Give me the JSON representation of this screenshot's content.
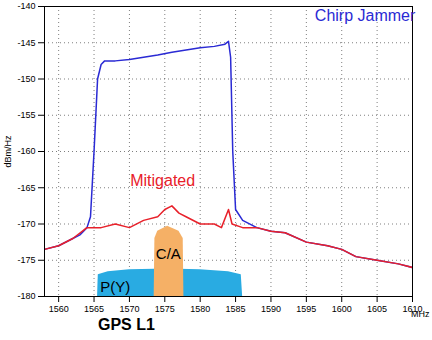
{
  "chart_data": {
    "type": "line",
    "caption": "GPS L1",
    "x_label": "MHz",
    "y_label": "dBm/Hz",
    "xlim": [
      1558,
      1610
    ],
    "xticks": [
      1560,
      1565,
      1570,
      1575,
      1580,
      1585,
      1590,
      1595,
      1600,
      1605,
      1610
    ],
    "ylim": [
      -180,
      -140
    ],
    "yticks": [
      -180,
      -175,
      -170,
      -165,
      -160,
      -155,
      -150,
      -145,
      -140
    ],
    "grid": true,
    "series": [
      {
        "name": "Chirp Jammer",
        "type": "line",
        "color": "#2a2ad4",
        "x": [
          1558,
          1560,
          1562,
          1563,
          1564,
          1564.5,
          1565,
          1565.5,
          1566,
          1566.5,
          1568,
          1570,
          1572,
          1574,
          1576,
          1578,
          1580,
          1582,
          1583.5,
          1584,
          1584.3,
          1584.6,
          1585,
          1586,
          1588,
          1590,
          1592,
          1595,
          1598,
          1600,
          1602,
          1605,
          1608,
          1610
        ],
        "values": [
          -173.5,
          -173,
          -172,
          -171.5,
          -170.5,
          -169,
          -160,
          -150,
          -148,
          -147.5,
          -147.5,
          -147.3,
          -147,
          -146.7,
          -146.3,
          -146,
          -145.7,
          -145.5,
          -145.2,
          -144.8,
          -147,
          -160,
          -168,
          -169.5,
          -170.5,
          -171,
          -171.2,
          -172.5,
          -173,
          -173.5,
          -174.5,
          -175,
          -175.5,
          -176
        ]
      },
      {
        "name": "Mitigated",
        "type": "line",
        "color": "#e8202a",
        "x": [
          1558,
          1560,
          1562,
          1564,
          1566,
          1568,
          1570,
          1572,
          1574,
          1575,
          1576,
          1577,
          1578,
          1580,
          1582,
          1583,
          1584,
          1584.5,
          1586,
          1588,
          1590,
          1592,
          1595,
          1598,
          1600,
          1602,
          1605,
          1608,
          1610
        ],
        "values": [
          -173.5,
          -173,
          -172,
          -170.5,
          -170.5,
          -170,
          -170.5,
          -169.5,
          -169,
          -168,
          -167.5,
          -168.5,
          -169,
          -170,
          -170,
          -170.5,
          -168,
          -170,
          -170.5,
          -170.5,
          -171,
          -171.2,
          -172.5,
          -173,
          -173.5,
          -174.5,
          -175,
          -175.5,
          -176
        ]
      },
      {
        "name": "P(Y)",
        "type": "area",
        "color": "#29abe2",
        "x": [
          1565.5,
          1565.6,
          1567,
          1570,
          1575.4,
          1580,
          1584,
          1585.8,
          1586
        ],
        "values": [
          -180,
          -177,
          -176.6,
          -176.3,
          -176.2,
          -176.3,
          -176.6,
          -177,
          -180
        ]
      },
      {
        "name": "C/A",
        "type": "area",
        "color": "#f5b066",
        "x": [
          1573.5,
          1573.6,
          1574,
          1575.4,
          1577,
          1577.6,
          1577.7
        ],
        "values": [
          -180,
          -172,
          -171,
          -170.3,
          -171,
          -172,
          -180
        ]
      }
    ],
    "annotations": [
      {
        "text": "Chirp Jammer",
        "x": 1603.3,
        "y": -141.3
      },
      {
        "text": "Mitigated",
        "x": 1574.7,
        "y": -164.1
      },
      {
        "text": "P(Y)",
        "x": 1568,
        "y": -178.7
      },
      {
        "text": "C/A",
        "x": 1575.5,
        "y": -174.1
      }
    ]
  }
}
